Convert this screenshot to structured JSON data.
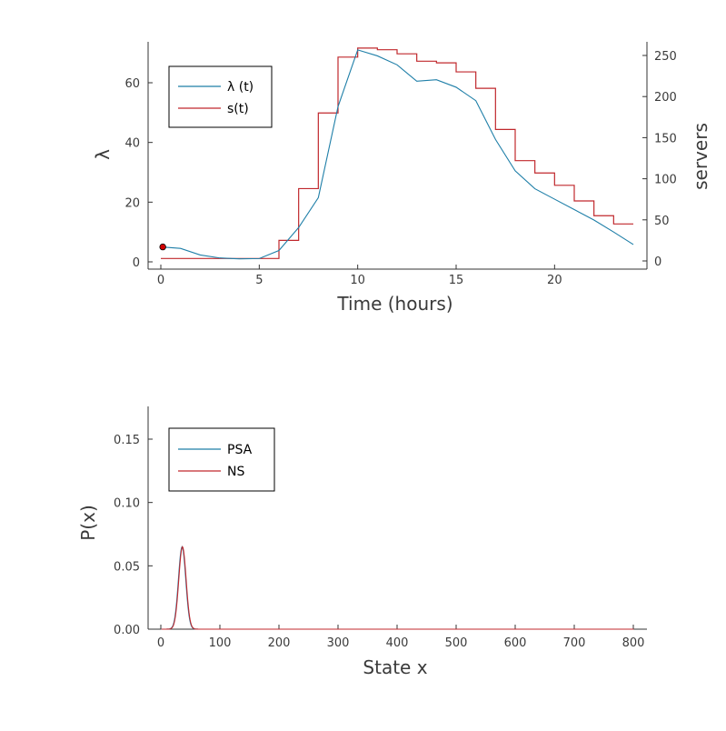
{
  "chart_data": [
    {
      "type": "line",
      "xlabel": "Time (hours)",
      "ylabel": "λ",
      "y2label": "servers",
      "xlim": [
        0,
        24
      ],
      "ylim": [
        0,
        72
      ],
      "y2lim": [
        0,
        262
      ],
      "xticks": [
        "0",
        "5",
        "10",
        "15",
        "20"
      ],
      "yticks": [
        "0",
        "20",
        "40",
        "60"
      ],
      "y2ticks": [
        "0",
        "50",
        "100",
        "150",
        "200",
        "250"
      ],
      "legend_position": "top-left",
      "colors": {
        "lambda": "#1f7fa8",
        "servers": "#c0282d",
        "marker": "#d00000"
      },
      "series": [
        {
          "name": "λ (t)",
          "axis": "left",
          "x": [
            0,
            1,
            2,
            3,
            4,
            5,
            6,
            7,
            8,
            9,
            10,
            11,
            12,
            13,
            14,
            15,
            16,
            17,
            18,
            19,
            20,
            21,
            22,
            23,
            24
          ],
          "values": [
            5.0,
            4.5,
            2.3,
            1.3,
            1.0,
            1.1,
            3.8,
            11.5,
            21.5,
            52.0,
            71.0,
            69.0,
            66.0,
            60.5,
            61.0,
            58.5,
            54.0,
            41.0,
            30.5,
            24.5,
            21.0,
            17.5,
            14.0,
            10.0,
            5.8
          ]
        },
        {
          "name": "s(t)",
          "axis": "right",
          "step": true,
          "x": [
            0,
            1,
            2,
            3,
            4,
            5,
            6,
            7,
            8,
            9,
            10,
            11,
            12,
            13,
            14,
            15,
            16,
            17,
            18,
            19,
            20,
            21,
            22,
            23,
            24
          ],
          "values": [
            3,
            3,
            3,
            3,
            3,
            3,
            25,
            88,
            180,
            248,
            259,
            257,
            252,
            243,
            241,
            230,
            210,
            160,
            122,
            107,
            92,
            73,
            55,
            45,
            45
          ]
        }
      ],
      "points": [
        {
          "x": 0.1,
          "y": 5.0
        }
      ]
    },
    {
      "type": "line",
      "xlabel": "State x",
      "ylabel": "P(x)",
      "xlim": [
        0,
        820
      ],
      "ylim": [
        0,
        0.175
      ],
      "xticks": [
        "0",
        "100",
        "200",
        "300",
        "400",
        "500",
        "600",
        "700",
        "800"
      ],
      "yticks": [
        "0.00",
        "0.05",
        "0.10",
        "0.15"
      ],
      "legend_position": "top-left",
      "colors": {
        "PSA": "#1f7fa8",
        "NS": "#c0282d"
      },
      "distribution": {
        "mean": 36,
        "sd": 6.2,
        "peak": 0.065
      },
      "series": [
        {
          "name": "PSA",
          "x_range": [
            0,
            800
          ]
        },
        {
          "name": "NS",
          "x_range": [
            0,
            800
          ]
        }
      ]
    }
  ]
}
